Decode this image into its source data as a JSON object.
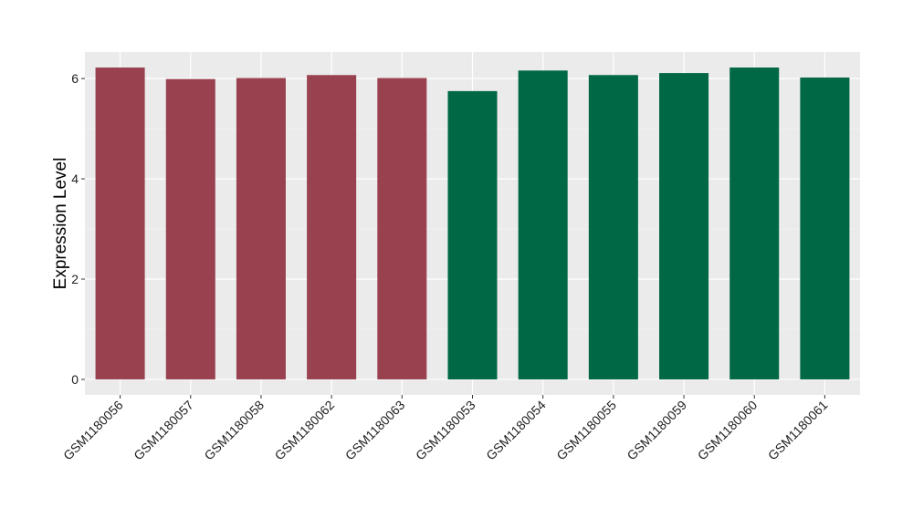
{
  "chart_data": {
    "type": "bar",
    "y_label": "Expression Level",
    "categories": [
      "GSM1180056",
      "GSM1180057",
      "GSM1180058",
      "GSM1180062",
      "GSM1180063",
      "GSM1180053",
      "GSM1180054",
      "GSM1180055",
      "GSM1180059",
      "GSM1180060",
      "GSM1180061"
    ],
    "values": [
      6.22,
      5.99,
      6.01,
      6.07,
      6.01,
      5.75,
      6.16,
      6.07,
      6.11,
      6.22,
      6.02
    ],
    "colors": [
      "#99414f",
      "#99414f",
      "#99414f",
      "#99414f",
      "#99414f",
      "#006845",
      "#006845",
      "#006845",
      "#006845",
      "#006845",
      "#006845"
    ],
    "ylim": [
      -0.31,
      6.53
    ],
    "yticks": [
      0,
      2,
      4,
      6
    ],
    "y_minor_grid": [
      1,
      3,
      5
    ],
    "grid": true
  }
}
